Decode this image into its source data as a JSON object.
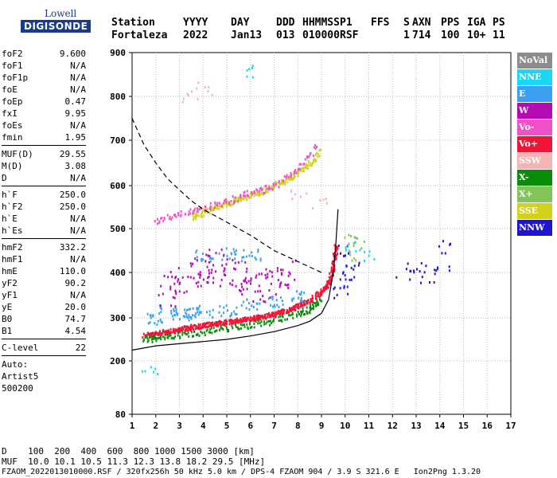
{
  "logo": {
    "line1": "Lowell",
    "line2": "DIGISONDE"
  },
  "header": {
    "labels": [
      "Station",
      "YYYY",
      "DAY",
      "DDD",
      "HHMMSS",
      "P1",
      "FFS",
      "S",
      "AXN",
      "PPS",
      "IGA",
      "PS"
    ],
    "values": [
      "Fortaleza",
      "2022",
      "Jan13",
      "013",
      "010000",
      "RSF",
      "",
      "1",
      "714",
      "100",
      "10+",
      "11"
    ]
  },
  "params": [
    [
      {
        "k": "foF2",
        "v": "9.600"
      },
      {
        "k": "foF1",
        "v": "N/A"
      },
      {
        "k": "foF1p",
        "v": "N/A"
      },
      {
        "k": "foE",
        "v": "N/A"
      },
      {
        "k": "foEp",
        "v": "0.47"
      },
      {
        "k": "fxI",
        "v": "9.95"
      },
      {
        "k": "foEs",
        "v": "N/A"
      },
      {
        "k": "fmin",
        "v": "1.95"
      }
    ],
    [
      {
        "k": "MUF(D)",
        "v": "29.55"
      },
      {
        "k": "M(D)",
        "v": "3.08"
      },
      {
        "k": "D",
        "v": "N/A"
      }
    ],
    [
      {
        "k": "h`F",
        "v": "250.0"
      },
      {
        "k": "h`F2",
        "v": "250.0"
      },
      {
        "k": "h`E",
        "v": "N/A"
      },
      {
        "k": "h`Es",
        "v": "N/A"
      }
    ],
    [
      {
        "k": "hmF2",
        "v": "332.2"
      },
      {
        "k": "hmF1",
        "v": "N/A"
      },
      {
        "k": "hmE",
        "v": "110.0"
      },
      {
        "k": "yF2",
        "v": "90.2"
      },
      {
        "k": "yF1",
        "v": "N/A"
      },
      {
        "k": "yE",
        "v": "20.0"
      },
      {
        "k": "B0",
        "v": "74.7"
      },
      {
        "k": "B1",
        "v": "4.54"
      }
    ],
    [
      {
        "k": "C-level",
        "v": "22"
      }
    ]
  ],
  "auto": [
    "Auto:",
    "Artist5",
    "500200"
  ],
  "legend": [
    {
      "label": "NoVal",
      "color": "#8c8c8c"
    },
    {
      "label": "NNE",
      "color": "#19d7f5"
    },
    {
      "label": "E",
      "color": "#3ca0f0"
    },
    {
      "label": "W",
      "color": "#b40ab4"
    },
    {
      "label": "Vo-",
      "color": "#f050c8"
    },
    {
      "label": "Vo+",
      "color": "#f01437"
    },
    {
      "label": "SSW",
      "color": "#f5b4b4"
    },
    {
      "label": "X-",
      "color": "#0a8c0a"
    },
    {
      "label": "X+",
      "color": "#82c35a"
    },
    {
      "label": "SSE",
      "color": "#d2d21e"
    },
    {
      "label": "NNW",
      "color": "#1e14d2"
    }
  ],
  "footer": {
    "line1": "D    100  200  400  600  800 1000 1500 3000 [km]",
    "line2": "MUF  10.0 10.1 10.5 11.3 12.3 13.8 18.2 29.5 [MHz]",
    "line3": "FZAOM_2022013010000.RSF / 320fx256h 50 kHz 5.0 km / DPS-4 FZAOM 904 / 3.9 S 321.6 E   Ion2Png 1.3.20"
  },
  "chart_data": {
    "type": "scatter",
    "title": "",
    "xlabel": "",
    "ylabel": "",
    "xlim": [
      1,
      17
    ],
    "ylim": [
      80,
      900
    ],
    "x_ticks": [
      1,
      2,
      3,
      4,
      5,
      6,
      7,
      8,
      9,
      10,
      11,
      12,
      13,
      14,
      15,
      16,
      17
    ],
    "y_ticks": [
      80,
      200,
      300,
      400,
      500,
      600,
      700,
      800,
      900
    ],
    "grid": true,
    "legend_position": "right",
    "series": [
      {
        "name": "Vo+",
        "color": "#f01437",
        "role": "trace",
        "points": [
          [
            1.5,
            262
          ],
          [
            2,
            265
          ],
          [
            2.5,
            270
          ],
          [
            3,
            275
          ],
          [
            3.5,
            280
          ],
          [
            4,
            285
          ],
          [
            4.5,
            288
          ],
          [
            5,
            292
          ],
          [
            5.5,
            296
          ],
          [
            6,
            300
          ],
          [
            6.5,
            305
          ],
          [
            7,
            310
          ],
          [
            7.5,
            318
          ],
          [
            8,
            328
          ],
          [
            8.5,
            340
          ],
          [
            9,
            360
          ],
          [
            9.3,
            380
          ],
          [
            9.5,
            420
          ],
          [
            9.6,
            470
          ]
        ]
      },
      {
        "name": "X-",
        "color": "#0a8c0a",
        "role": "trace",
        "points": [
          [
            1.5,
            252
          ],
          [
            2,
            255
          ],
          [
            3,
            262
          ],
          [
            4,
            270
          ],
          [
            5,
            278
          ],
          [
            6,
            286
          ],
          [
            7,
            296
          ],
          [
            8,
            312
          ],
          [
            8.5,
            322
          ],
          [
            9,
            340
          ]
        ]
      },
      {
        "name": "E",
        "color": "#3ca0f0",
        "role": "cluster",
        "points": [
          [
            2,
            300
          ],
          [
            3,
            310
          ],
          [
            4,
            315
          ],
          [
            5,
            320
          ],
          [
            6,
            330
          ],
          [
            7,
            340
          ],
          [
            8,
            350
          ],
          [
            4,
            440
          ],
          [
            5,
            445
          ],
          [
            6,
            440
          ],
          [
            2.5,
            320
          ],
          [
            3.5,
            312
          ]
        ]
      },
      {
        "name": "W",
        "color": "#b40ab4",
        "role": "cluster",
        "points": [
          [
            2.5,
            360
          ],
          [
            3,
            380
          ],
          [
            3.5,
            400
          ],
          [
            4,
            410
          ],
          [
            4.5,
            420
          ],
          [
            5,
            400
          ],
          [
            5.5,
            395
          ],
          [
            6,
            360
          ],
          [
            6.5,
            370
          ],
          [
            7,
            380
          ],
          [
            7.5,
            400
          ]
        ]
      },
      {
        "name": "SSE",
        "color": "#d2d21e",
        "role": "trace",
        "points": [
          [
            3.5,
            530
          ],
          [
            4,
            540
          ],
          [
            4.5,
            550
          ],
          [
            5,
            560
          ],
          [
            5.5,
            570
          ],
          [
            6,
            580
          ],
          [
            6.5,
            590
          ],
          [
            7,
            605
          ],
          [
            7.5,
            615
          ],
          [
            8,
            630
          ],
          [
            8.5,
            650
          ],
          [
            9,
            680
          ]
        ]
      },
      {
        "name": "Vo-",
        "color": "#f050c8",
        "role": "trace",
        "points": [
          [
            2,
            520
          ],
          [
            3,
            535
          ],
          [
            4,
            550
          ],
          [
            5,
            565
          ],
          [
            6,
            585
          ],
          [
            7,
            600
          ],
          [
            8,
            640
          ],
          [
            8.8,
            690
          ]
        ]
      },
      {
        "name": "NNW",
        "color": "#1e14d2",
        "role": "cluster",
        "points": [
          [
            9.8,
            360
          ],
          [
            10,
            380
          ],
          [
            10.2,
            400
          ],
          [
            10.4,
            420
          ],
          [
            10,
            450
          ],
          [
            12.5,
            400
          ],
          [
            13,
            410
          ],
          [
            13.5,
            390
          ],
          [
            14,
            420
          ],
          [
            14.2,
            460
          ]
        ]
      },
      {
        "name": "SSW",
        "color": "#f5b4b4",
        "role": "cluster",
        "points": [
          [
            3.5,
            800
          ],
          [
            4,
            820
          ],
          [
            8,
            580
          ],
          [
            9,
            560
          ]
        ]
      },
      {
        "name": "X+",
        "color": "#82c35a",
        "role": "cluster",
        "points": [
          [
            10,
            480
          ],
          [
            10.5,
            470
          ],
          [
            10.2,
            440
          ]
        ]
      },
      {
        "name": "NNE",
        "color": "#19d7f5",
        "role": "cluster",
        "points": [
          [
            1.7,
            180
          ],
          [
            6,
            860
          ],
          [
            10.2,
            460
          ],
          [
            10.8,
            440
          ]
        ]
      }
    ],
    "curves": [
      {
        "label": "solid",
        "style": "solid",
        "points": [
          [
            1,
            225
          ],
          [
            2,
            235
          ],
          [
            3,
            240
          ],
          [
            4,
            245
          ],
          [
            5,
            250
          ],
          [
            6,
            258
          ],
          [
            7,
            268
          ],
          [
            8,
            282
          ],
          [
            8.5,
            292
          ],
          [
            9,
            310
          ],
          [
            9.3,
            340
          ],
          [
            9.5,
            400
          ],
          [
            9.6,
            460
          ],
          [
            9.7,
            545
          ]
        ]
      },
      {
        "label": "dashed",
        "style": "dashed",
        "points": [
          [
            1,
            750
          ],
          [
            1.5,
            690
          ],
          [
            2,
            650
          ],
          [
            2.5,
            615
          ],
          [
            3,
            590
          ],
          [
            3.5,
            565
          ],
          [
            4,
            545
          ],
          [
            5,
            515
          ],
          [
            6,
            485
          ],
          [
            7,
            450
          ],
          [
            8,
            425
          ],
          [
            9,
            400
          ]
        ]
      }
    ]
  }
}
